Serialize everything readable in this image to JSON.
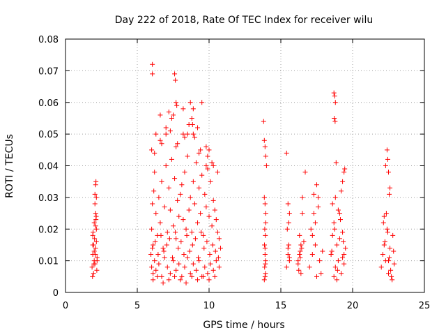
{
  "chart_data": {
    "type": "scatter",
    "title": "Day 222 of 2018, Rate Of TEC Index for receiver wilu",
    "xlabel": "GPS time / hours",
    "ylabel": "ROTI / TECUs",
    "xlim": [
      0,
      25
    ],
    "ylim": [
      0,
      0.08
    ],
    "x_ticks": [
      "0",
      "5",
      "10",
      "15",
      "20",
      "25"
    ],
    "y_ticks": [
      "0",
      "0.01",
      "0.02",
      "0.03",
      "0.04",
      "0.05",
      "0.06",
      "0.07",
      "0.08"
    ],
    "grid": true,
    "marker": "+",
    "color": "#ff0000",
    "series": [
      {
        "x": [
          1.85,
          1.9,
          1.95,
          2.0,
          2.05,
          2.1,
          2.15,
          2.2,
          1.9,
          2.0,
          2.1,
          2.15,
          2.05,
          1.95,
          2.1,
          2.12,
          2.15,
          2.18,
          2.1,
          2.0,
          1.88,
          1.92,
          1.98,
          2.02,
          2.08,
          2.14,
          2.2,
          1.9,
          2.05,
          2.12,
          5.95,
          6.0,
          6.05,
          6.1,
          6.15,
          6.2,
          6.3,
          6.4,
          6.5,
          6.6,
          6.7,
          6.8,
          6.9,
          7.0,
          7.1,
          7.2,
          7.3,
          7.4,
          7.5,
          7.6,
          7.7,
          7.8,
          7.9,
          8.0,
          8.1,
          8.2,
          8.3,
          8.4,
          8.5,
          8.6,
          8.7,
          8.8,
          8.9,
          9.0,
          9.1,
          9.2,
          9.3,
          9.4,
          9.5,
          9.6,
          9.7,
          9.8,
          9.9,
          10.0,
          10.1,
          10.2,
          10.3,
          10.4,
          10.5,
          10.6,
          10.7,
          10.8,
          6.0,
          6.1,
          6.2,
          6.3,
          6.5,
          6.7,
          6.9,
          7.1,
          7.3,
          7.5,
          7.7,
          7.9,
          8.1,
          8.3,
          8.5,
          8.7,
          8.9,
          9.1,
          9.3,
          9.5,
          9.7,
          9.9,
          10.1,
          10.3,
          10.5,
          10.7,
          6.05,
          6.25,
          6.45,
          6.65,
          6.85,
          7.05,
          7.25,
          7.45,
          7.65,
          7.85,
          8.05,
          8.25,
          8.45,
          8.65,
          8.85,
          9.05,
          9.25,
          9.45,
          9.65,
          9.85,
          10.05,
          10.25,
          10.45,
          10.65,
          6.1,
          6.4,
          6.8,
          7.2,
          7.6,
          8.0,
          8.4,
          8.8,
          9.2,
          9.6,
          10.0,
          10.4,
          6.0,
          6.3,
          6.6,
          7.0,
          7.4,
          7.8,
          8.2,
          8.6,
          9.0,
          9.4,
          9.8,
          10.2,
          10.6,
          6.2,
          6.7,
          7.3,
          7.7,
          8.3,
          8.9,
          9.3,
          9.9,
          10.3,
          6.05,
          6.05,
          7.6,
          7.65,
          7.7,
          7.75,
          8.8,
          8.85,
          8.9,
          7.5,
          8.5,
          9.5,
          10.0,
          9.8,
          7.2,
          6.6,
          7.0,
          8.2,
          8.7,
          9.2,
          13.8,
          13.85,
          13.9,
          13.95,
          14.0,
          13.85,
          13.9,
          13.95,
          13.88,
          13.92,
          13.86,
          13.9,
          13.94,
          13.87,
          13.93,
          13.9,
          13.85,
          13.95,
          13.9,
          13.92,
          15.4,
          15.5,
          15.6,
          15.45,
          15.55,
          15.5,
          15.6,
          15.4,
          15.5,
          15.55,
          15.6,
          16.2,
          16.3,
          16.4,
          16.5,
          16.25,
          16.35,
          16.45,
          16.3,
          16.4,
          16.2,
          16.5,
          16.35,
          16.6,
          16.7,
          17.0,
          17.2,
          17.4,
          17.6,
          17.8,
          17.1,
          17.3,
          17.5,
          17.7,
          17.9,
          17.2,
          17.4,
          17.6,
          17.3,
          17.5,
          18.5,
          18.6,
          18.7,
          18.8,
          18.9,
          19.0,
          19.1,
          19.2,
          19.3,
          19.4,
          19.5,
          18.6,
          18.8,
          19.0,
          19.2,
          19.4,
          18.7,
          18.9,
          19.1,
          19.3,
          18.55,
          18.75,
          18.95,
          19.15,
          19.35,
          18.7,
          18.75,
          18.8,
          18.72,
          18.78,
          18.85,
          19.4,
          19.45,
          19.3,
          22.0,
          22.1,
          22.2,
          22.3,
          22.4,
          22.5,
          22.6,
          22.7,
          22.8,
          22.9,
          22.15,
          22.35,
          22.55,
          22.75,
          22.25,
          22.45,
          22.65,
          22.85,
          22.2,
          22.5,
          22.3,
          22.4,
          22.45,
          22.5,
          22.6,
          22.55
        ],
        "y": [
          0.008,
          0.012,
          0.015,
          0.01,
          0.009,
          0.014,
          0.02,
          0.011,
          0.018,
          0.022,
          0.025,
          0.03,
          0.031,
          0.006,
          0.034,
          0.035,
          0.016,
          0.007,
          0.021,
          0.013,
          0.005,
          0.019,
          0.009,
          0.017,
          0.012,
          0.024,
          0.01,
          0.015,
          0.028,
          0.023,
          0.012,
          0.02,
          0.028,
          0.015,
          0.032,
          0.038,
          0.025,
          0.018,
          0.03,
          0.022,
          0.035,
          0.014,
          0.027,
          0.04,
          0.019,
          0.033,
          0.026,
          0.042,
          0.021,
          0.036,
          0.017,
          0.029,
          0.024,
          0.031,
          0.034,
          0.023,
          0.038,
          0.02,
          0.043,
          0.026,
          0.03,
          0.019,
          0.035,
          0.028,
          0.041,
          0.022,
          0.033,
          0.025,
          0.037,
          0.018,
          0.031,
          0.027,
          0.039,
          0.024,
          0.035,
          0.021,
          0.029,
          0.026,
          0.023,
          0.019,
          0.017,
          0.014,
          0.008,
          0.006,
          0.01,
          0.007,
          0.009,
          0.005,
          0.011,
          0.008,
          0.006,
          0.01,
          0.007,
          0.009,
          0.005,
          0.008,
          0.011,
          0.006,
          0.009,
          0.007,
          0.01,
          0.005,
          0.008,
          0.006,
          0.009,
          0.007,
          0.01,
          0.008,
          0.014,
          0.016,
          0.012,
          0.018,
          0.013,
          0.015,
          0.017,
          0.011,
          0.019,
          0.014,
          0.016,
          0.012,
          0.018,
          0.013,
          0.015,
          0.017,
          0.011,
          0.019,
          0.014,
          0.016,
          0.012,
          0.015,
          0.013,
          0.011,
          0.004,
          0.005,
          0.003,
          0.004,
          0.005,
          0.004,
          0.003,
          0.005,
          0.004,
          0.005,
          0.004,
          0.005,
          0.045,
          0.05,
          0.048,
          0.052,
          0.055,
          0.047,
          0.05,
          0.053,
          0.049,
          0.045,
          0.046,
          0.041,
          0.038,
          0.044,
          0.047,
          0.051,
          0.046,
          0.049,
          0.05,
          0.044,
          0.043,
          0.04,
          0.072,
          0.069,
          0.069,
          0.067,
          0.06,
          0.059,
          0.055,
          0.053,
          0.058,
          0.056,
          0.05,
          0.06,
          0.045,
          0.04,
          0.057,
          0.056,
          0.05,
          0.058,
          0.06,
          0.052,
          0.054,
          0.048,
          0.046,
          0.043,
          0.04,
          0.03,
          0.028,
          0.025,
          0.02,
          0.018,
          0.015,
          0.012,
          0.01,
          0.008,
          0.006,
          0.005,
          0.004,
          0.022,
          0.014,
          0.009,
          0.044,
          0.028,
          0.025,
          0.02,
          0.015,
          0.012,
          0.01,
          0.008,
          0.014,
          0.022,
          0.011,
          0.009,
          0.012,
          0.015,
          0.03,
          0.007,
          0.011,
          0.014,
          0.018,
          0.006,
          0.01,
          0.025,
          0.013,
          0.016,
          0.038,
          0.008,
          0.012,
          0.015,
          0.03,
          0.006,
          0.02,
          0.025,
          0.034,
          0.01,
          0.013,
          0.018,
          0.022,
          0.027,
          0.031,
          0.005,
          0.012,
          0.018,
          0.022,
          0.008,
          0.015,
          0.01,
          0.025,
          0.006,
          0.019,
          0.012,
          0.014,
          0.028,
          0.03,
          0.026,
          0.032,
          0.009,
          0.005,
          0.004,
          0.017,
          0.011,
          0.013,
          0.02,
          0.007,
          0.023,
          0.016,
          0.063,
          0.062,
          0.06,
          0.055,
          0.054,
          0.041,
          0.038,
          0.039,
          0.035,
          0.008,
          0.012,
          0.015,
          0.01,
          0.02,
          0.006,
          0.014,
          0.005,
          0.018,
          0.009,
          0.022,
          0.025,
          0.011,
          0.004,
          0.016,
          0.019,
          0.007,
          0.013,
          0.024,
          0.01,
          0.04,
          0.045,
          0.042,
          0.038,
          0.033,
          0.031
        ]
      }
    ]
  }
}
